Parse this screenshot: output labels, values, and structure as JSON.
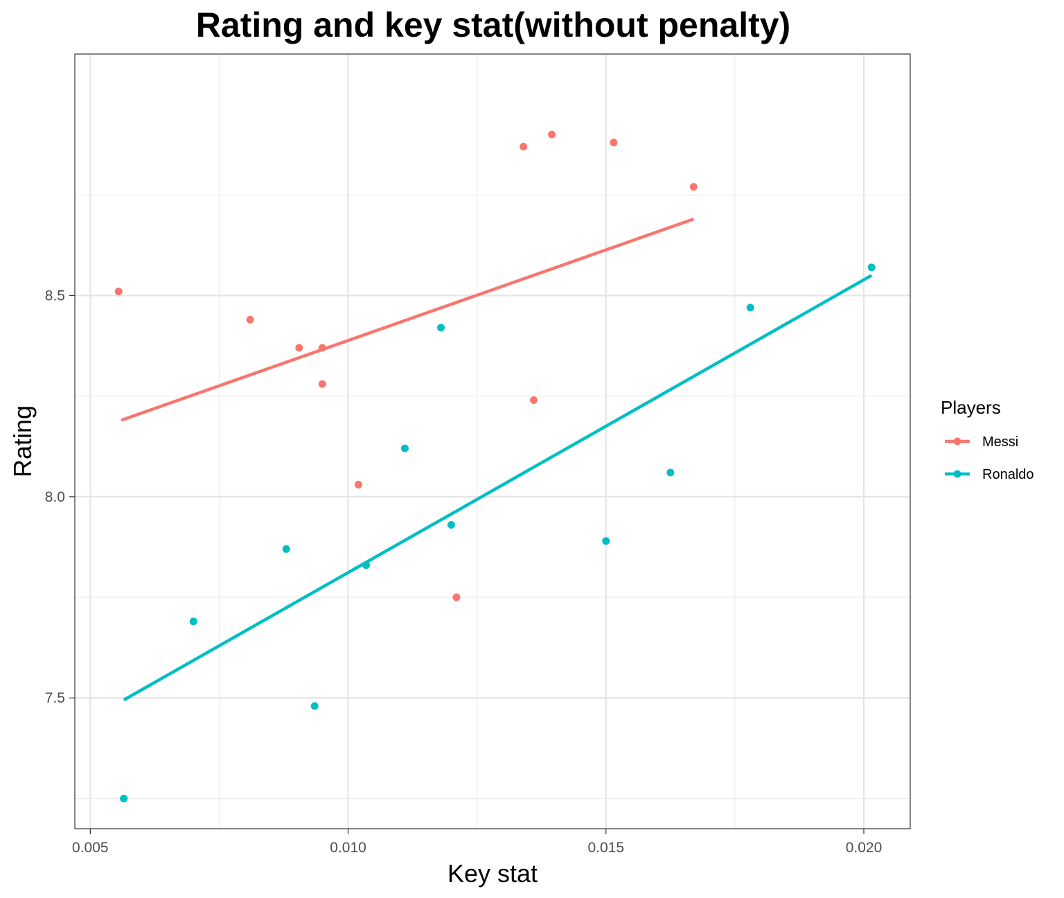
{
  "chart_data": {
    "type": "scatter",
    "title": "Rating and key stat(without penalty)",
    "xlabel": "Key stat",
    "ylabel": "Rating",
    "xlim": [
      0.0047,
      0.0209
    ],
    "ylim": [
      7.175,
      9.1
    ],
    "x_ticks": [
      0.005,
      0.01,
      0.015,
      0.02
    ],
    "x_tick_labels": [
      "0.005",
      "0.010",
      "0.015",
      "0.020"
    ],
    "y_ticks": [
      7.5,
      8.0,
      8.5
    ],
    "y_tick_labels": [
      "7.5",
      "8.0",
      "8.5"
    ],
    "grid": true,
    "legend": {
      "title": "Players",
      "position": "right"
    },
    "series": [
      {
        "name": "Messi",
        "color": "#F8766D",
        "points": [
          {
            "x": 0.00555,
            "y": 8.51
          },
          {
            "x": 0.0081,
            "y": 8.44
          },
          {
            "x": 0.00905,
            "y": 8.37
          },
          {
            "x": 0.0095,
            "y": 8.37
          },
          {
            "x": 0.0095,
            "y": 8.28
          },
          {
            "x": 0.0102,
            "y": 8.03
          },
          {
            "x": 0.0121,
            "y": 7.75
          },
          {
            "x": 0.0134,
            "y": 8.87
          },
          {
            "x": 0.0136,
            "y": 8.24
          },
          {
            "x": 0.01395,
            "y": 8.9
          },
          {
            "x": 0.01515,
            "y": 8.88
          },
          {
            "x": 0.0167,
            "y": 8.77
          }
        ],
        "fit": {
          "x": [
            0.0056,
            0.0167
          ],
          "y": [
            8.19,
            8.69
          ]
        }
      },
      {
        "name": "Ronaldo",
        "color": "#00BFC4",
        "points": [
          {
            "x": 0.00565,
            "y": 7.25
          },
          {
            "x": 0.007,
            "y": 7.69
          },
          {
            "x": 0.0088,
            "y": 7.87
          },
          {
            "x": 0.00935,
            "y": 7.48
          },
          {
            "x": 0.01035,
            "y": 7.83
          },
          {
            "x": 0.0111,
            "y": 8.12
          },
          {
            "x": 0.0118,
            "y": 8.42
          },
          {
            "x": 0.012,
            "y": 7.93
          },
          {
            "x": 0.015,
            "y": 7.89
          },
          {
            "x": 0.01625,
            "y": 8.06
          },
          {
            "x": 0.0178,
            "y": 8.47
          },
          {
            "x": 0.02015,
            "y": 8.57
          }
        ],
        "fit": {
          "x": [
            0.00565,
            0.02015
          ],
          "y": [
            7.495,
            8.55
          ]
        }
      }
    ]
  }
}
